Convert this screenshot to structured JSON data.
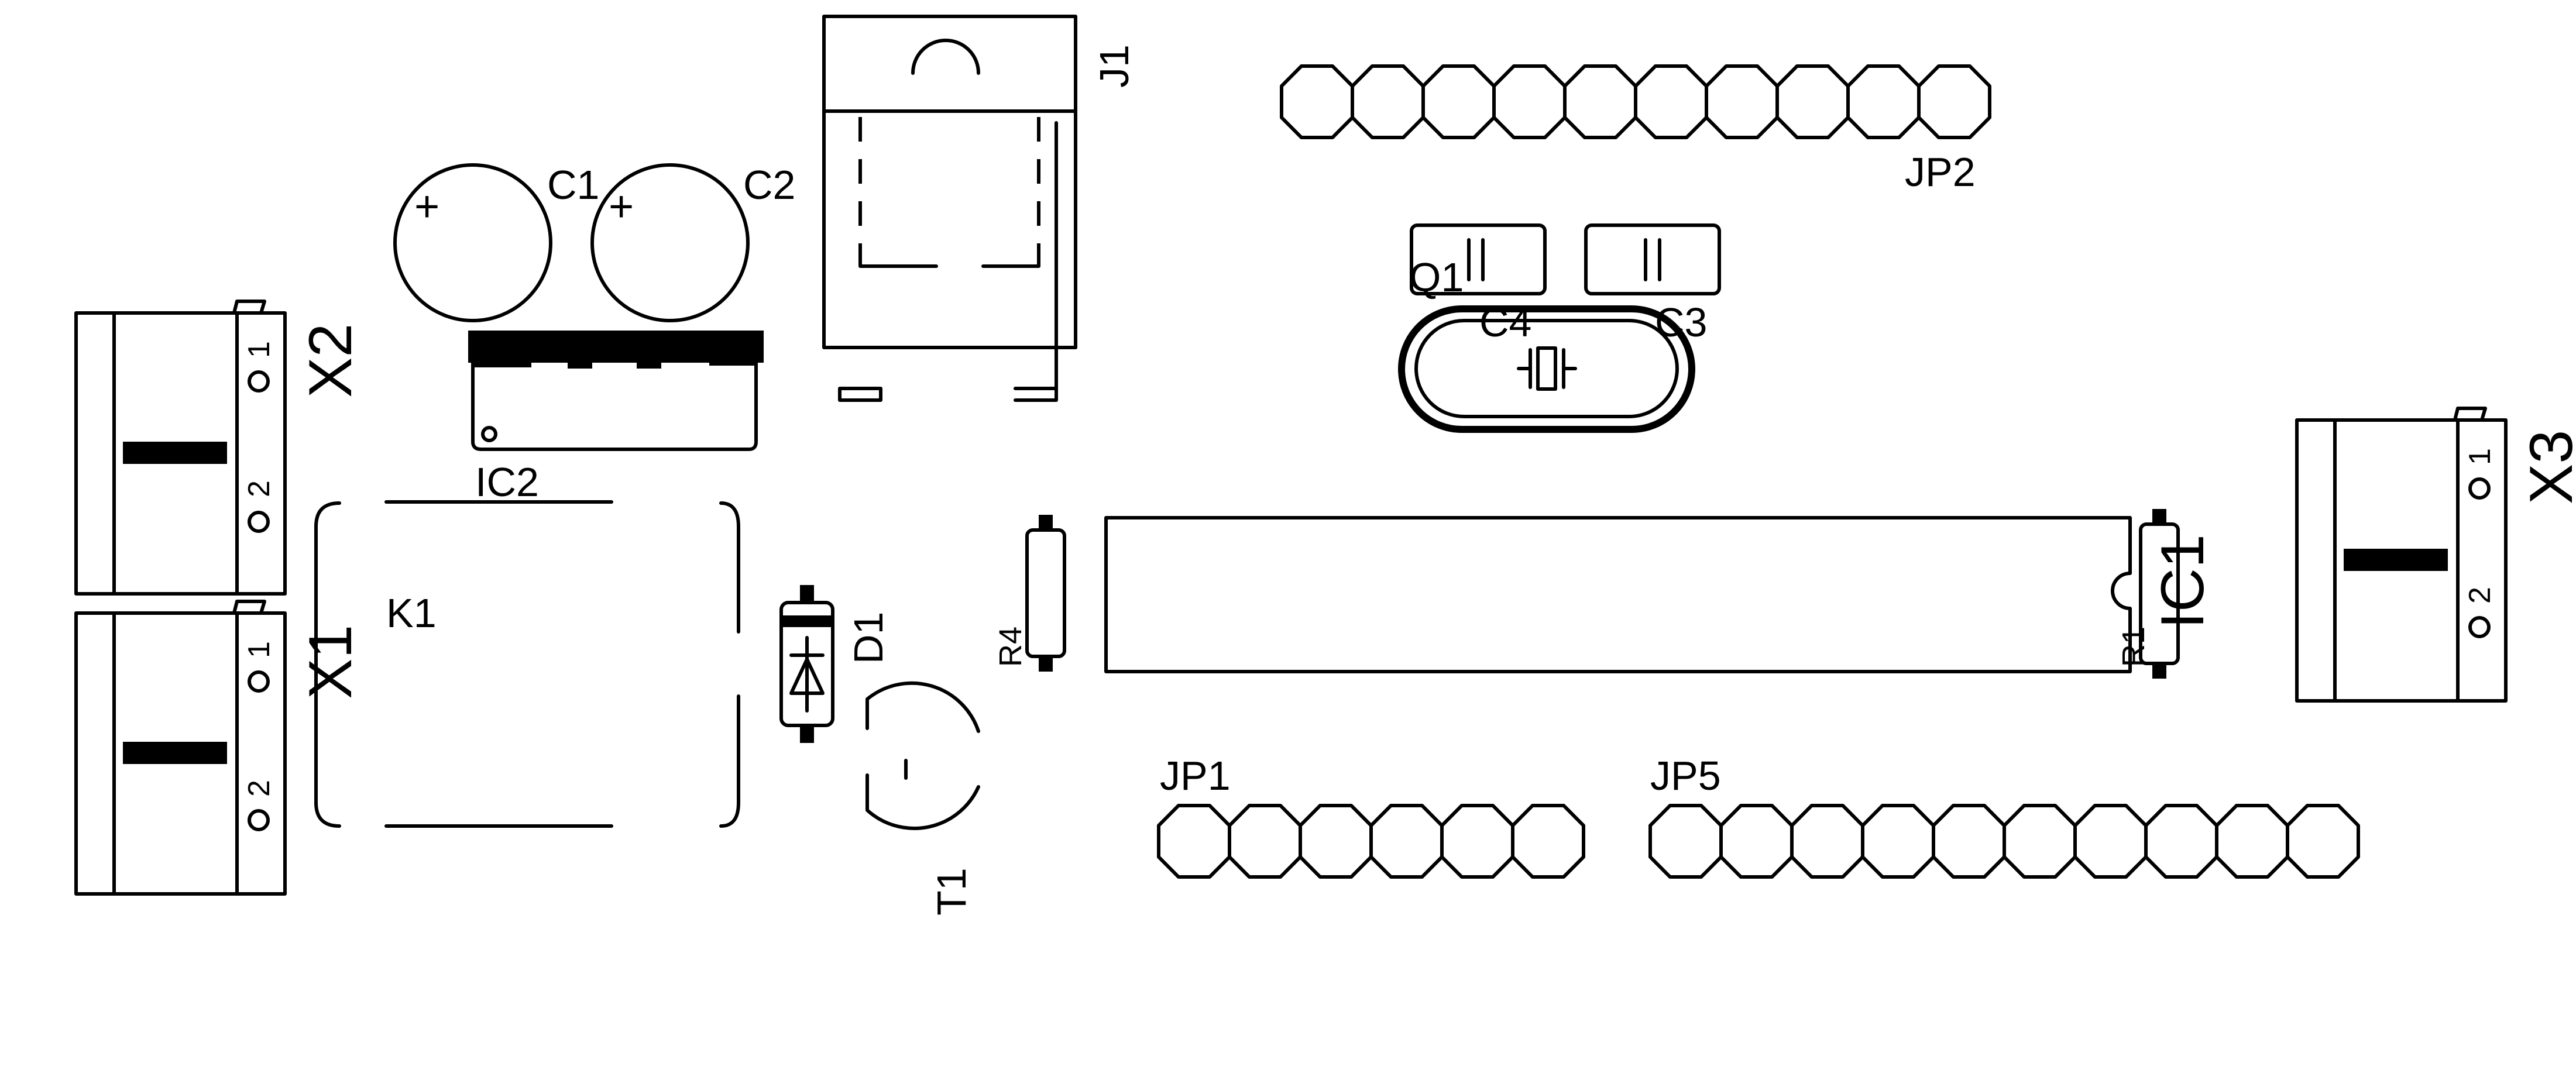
{
  "colors": {
    "ink": "#000000",
    "background": "#ffffff"
  },
  "labels": {
    "c1": "C1",
    "c2": "C2",
    "c3": "C3",
    "c4": "C4",
    "j1": "J1",
    "jp1": "JP1",
    "jp2": "JP2",
    "jp5": "JP5",
    "ic1": "IC1",
    "ic2": "IC2",
    "q1": "Q1",
    "k1": "K1",
    "d1": "D1",
    "t1": "T1",
    "r1": "R1",
    "r4": "R4",
    "x1": "X1",
    "x2": "X2",
    "x3": "X3"
  },
  "pin_labels": {
    "one": "1",
    "two": "2"
  },
  "symbols": {
    "plus": "+"
  },
  "headers": {
    "jp1_pins": 6,
    "jp2_pins": 10,
    "jp5_pins": 10
  }
}
